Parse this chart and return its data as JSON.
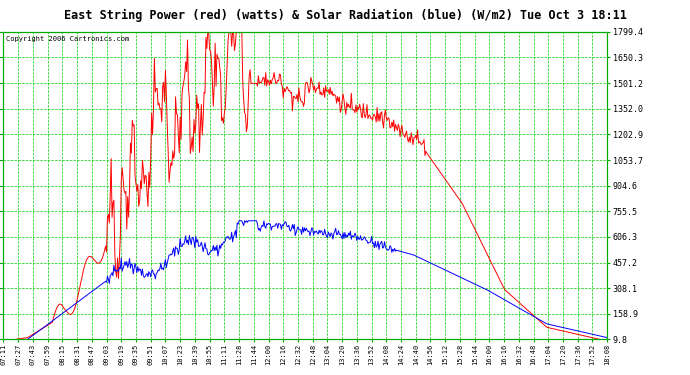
{
  "title": "East String Power (red) (watts) & Solar Radiation (blue) (W/m2) Tue Oct 3 18:11",
  "copyright": "Copyright 2006 Cartronics.com",
  "yticks": [
    9.8,
    158.9,
    308.1,
    457.2,
    606.3,
    755.5,
    904.6,
    1053.7,
    1202.9,
    1352.0,
    1501.2,
    1650.3,
    1799.4
  ],
  "ymin": 9.8,
  "ymax": 1799.4,
  "bg_color": "#ffffff",
  "grid_color": "#00cc00",
  "title_color": "#000000",
  "red_color": "#ff0000",
  "blue_color": "#0000ff",
  "xtick_labels": [
    "07:11",
    "07:27",
    "07:43",
    "07:59",
    "08:15",
    "08:31",
    "08:47",
    "09:03",
    "09:19",
    "09:35",
    "09:51",
    "10:07",
    "10:23",
    "10:39",
    "10:55",
    "11:11",
    "11:28",
    "11:44",
    "12:00",
    "12:16",
    "12:32",
    "12:48",
    "13:04",
    "13:20",
    "13:36",
    "13:52",
    "14:08",
    "14:24",
    "14:40",
    "14:56",
    "15:12",
    "15:28",
    "15:44",
    "16:00",
    "16:16",
    "16:32",
    "16:48",
    "17:04",
    "17:20",
    "17:36",
    "17:52",
    "18:08"
  ]
}
